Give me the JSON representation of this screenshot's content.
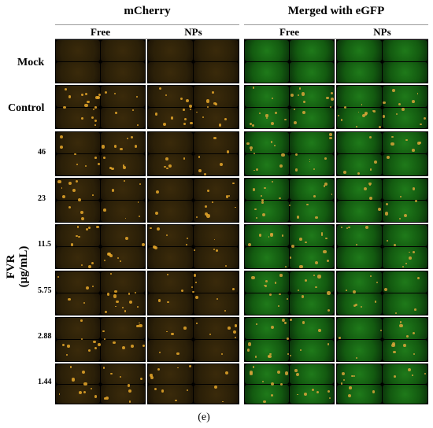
{
  "headers": {
    "left_group": "mCherry",
    "right_group": "Merged with eGFP",
    "sub_free_left": "Free",
    "sub_nps_left": "NPs",
    "sub_free_right": "Free",
    "sub_nps_right": "NPs"
  },
  "rows": {
    "mock": "Mock",
    "control": "Control",
    "fvr_line1": "FVR",
    "fvr_line2": "(μg/mL)"
  },
  "concentrations": [
    "46",
    "23",
    "11.5",
    "5.75",
    "2.88",
    "1.44"
  ],
  "caption": "(e)",
  "colors": {
    "mcherry_tile": "#2a1f08",
    "egfp_tile": "#0f3c0c",
    "spot_orange": "#e8a82a",
    "spot_green": "#35c23a"
  }
}
